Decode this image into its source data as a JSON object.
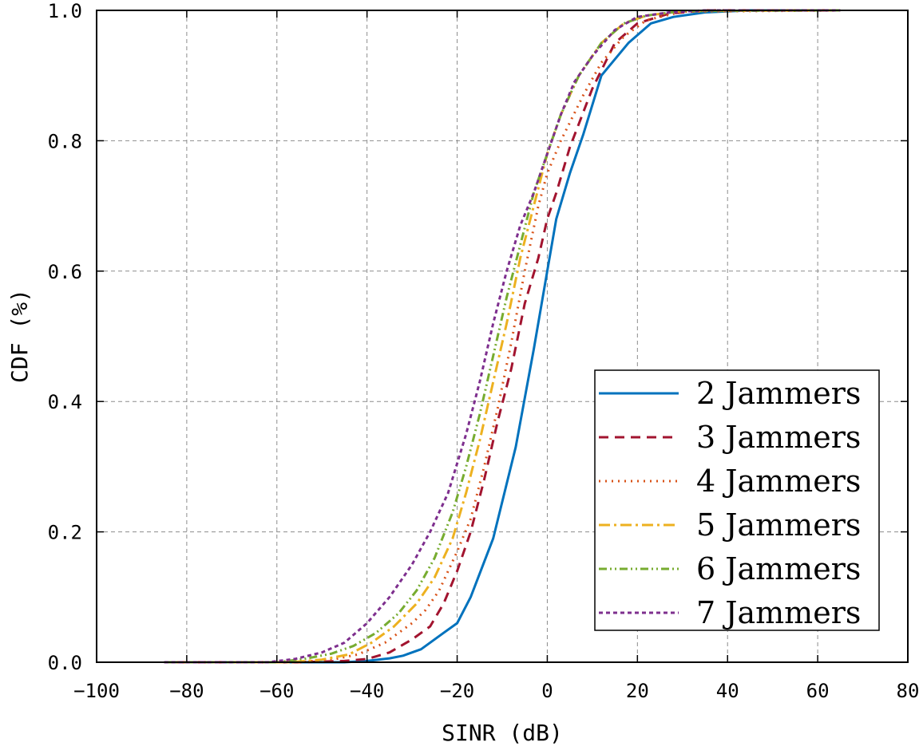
{
  "chart_data": {
    "type": "line",
    "xlabel": "SINR (dB)",
    "ylabel": "CDF (%)",
    "xlim": [
      -100,
      80
    ],
    "ylim": [
      0,
      1
    ],
    "x_ticks": [
      -100,
      -80,
      -60,
      -40,
      -20,
      0,
      20,
      40,
      60,
      80
    ],
    "x_tick_labels": [
      "−100",
      "−80",
      "−60",
      "−40",
      "−20",
      "0",
      "20",
      "40",
      "60",
      "80"
    ],
    "y_ticks": [
      0,
      0.2,
      0.4,
      0.6,
      0.8,
      1.0
    ],
    "y_tick_labels": [
      "0.0",
      "0.2",
      "0.4",
      "0.6",
      "0.8",
      "1.0"
    ],
    "grid": true,
    "legend_position": "lower-right",
    "series": [
      {
        "name": "2 Jammers",
        "color": "#0072BD",
        "style": "solid",
        "x": [
          -85,
          -60,
          -50,
          -45,
          -40,
          -35,
          -32,
          -28,
          -23,
          -20,
          -17,
          -12,
          -7,
          -3,
          0,
          2,
          5,
          8,
          12,
          18,
          23,
          28,
          35,
          45,
          65
        ],
        "y": [
          0,
          0,
          0,
          0,
          0.002,
          0.006,
          0.01,
          0.02,
          0.045,
          0.06,
          0.1,
          0.19,
          0.33,
          0.48,
          0.6,
          0.68,
          0.75,
          0.81,
          0.9,
          0.95,
          0.98,
          0.99,
          0.997,
          1.0,
          1.0
        ]
      },
      {
        "name": "3 Jammers",
        "color": "#A2142F",
        "style": "dashed",
        "x": [
          -85,
          -55,
          -45,
          -40,
          -35,
          -30,
          -26,
          -23,
          -20,
          -17,
          -14,
          -11,
          -8,
          -5,
          -2,
          0,
          2,
          5,
          10,
          15,
          20,
          27,
          35,
          65
        ],
        "y": [
          0,
          0,
          0.002,
          0.005,
          0.015,
          0.035,
          0.055,
          0.09,
          0.14,
          0.2,
          0.28,
          0.37,
          0.45,
          0.55,
          0.62,
          0.68,
          0.72,
          0.79,
          0.88,
          0.95,
          0.98,
          0.995,
          1.0,
          1.0
        ]
      },
      {
        "name": "4 Jammers",
        "color": "#D95319",
        "style": "dotted",
        "x": [
          -85,
          -55,
          -47,
          -42,
          -36,
          -30,
          -27,
          -24,
          -20,
          -17,
          -14,
          -11,
          -8,
          -5,
          -2,
          0,
          3,
          8,
          12,
          17,
          22,
          30,
          65
        ],
        "y": [
          0,
          0,
          0.005,
          0.012,
          0.03,
          0.06,
          0.08,
          0.11,
          0.17,
          0.22,
          0.3,
          0.39,
          0.49,
          0.6,
          0.7,
          0.75,
          0.8,
          0.87,
          0.92,
          0.96,
          0.985,
          0.998,
          1.0
        ]
      },
      {
        "name": "5 Jammers",
        "color": "#EDB120",
        "style": "dash-dot",
        "x": [
          -85,
          -57,
          -50,
          -44,
          -39,
          -34,
          -29,
          -25,
          -21,
          -18,
          -15,
          -12,
          -9,
          -6,
          -3,
          0,
          3,
          7,
          12,
          17,
          22,
          30,
          65
        ],
        "y": [
          0,
          0,
          0.004,
          0.012,
          0.03,
          0.055,
          0.09,
          0.13,
          0.19,
          0.26,
          0.34,
          0.43,
          0.52,
          0.62,
          0.7,
          0.78,
          0.84,
          0.9,
          0.95,
          0.98,
          0.992,
          0.999,
          1.0
        ]
      },
      {
        "name": "6 Jammers",
        "color": "#77AC30",
        "style": "dash-dot-dot",
        "x": [
          -85,
          -60,
          -54,
          -48,
          -43,
          -38,
          -33,
          -29,
          -25,
          -21,
          -18,
          -15,
          -12,
          -9,
          -6,
          -3,
          0,
          3,
          7,
          12,
          17,
          22,
          30,
          65
        ],
        "y": [
          0,
          0,
          0.005,
          0.013,
          0.025,
          0.045,
          0.075,
          0.11,
          0.16,
          0.23,
          0.3,
          0.38,
          0.47,
          0.56,
          0.64,
          0.72,
          0.78,
          0.84,
          0.9,
          0.95,
          0.98,
          0.992,
          0.999,
          1.0
        ]
      },
      {
        "name": "7 Jammers",
        "color": "#7E2F8E",
        "style": "short-dash",
        "x": [
          -85,
          -62,
          -56,
          -50,
          -45,
          -40,
          -35,
          -30,
          -26,
          -22,
          -18,
          -15,
          -12,
          -9,
          -6,
          -3,
          0,
          3,
          6,
          10,
          15,
          20,
          27,
          35,
          65
        ],
        "y": [
          0,
          0,
          0.005,
          0.015,
          0.03,
          0.06,
          0.1,
          0.15,
          0.2,
          0.26,
          0.35,
          0.43,
          0.52,
          0.6,
          0.67,
          0.72,
          0.78,
          0.84,
          0.89,
          0.93,
          0.97,
          0.99,
          0.997,
          1.0,
          1.0
        ]
      }
    ]
  }
}
